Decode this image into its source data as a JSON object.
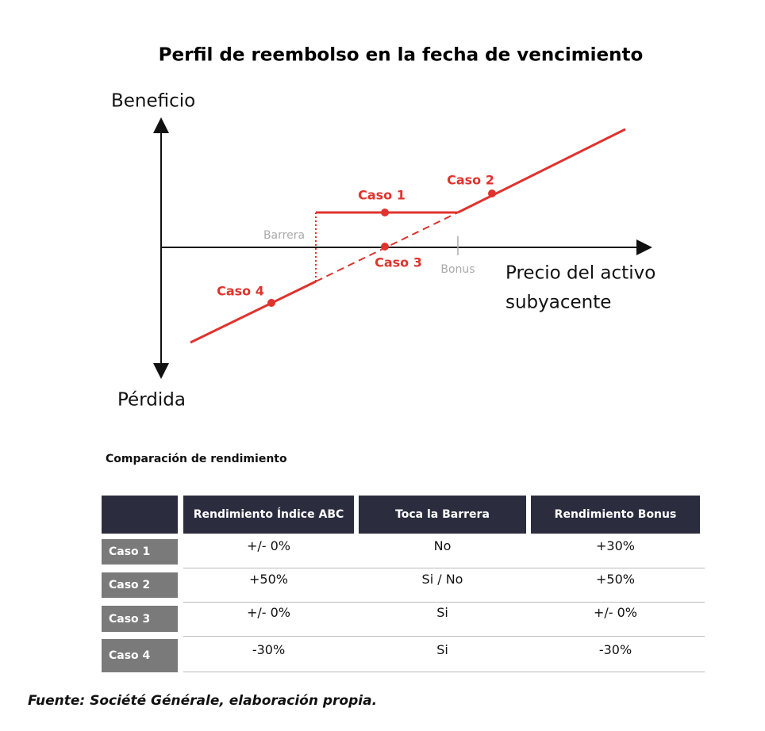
{
  "diagram": {
    "title": "Perfil de reembolso en la fecha de vencimiento",
    "y_axis_top": "Beneficio",
    "y_axis_bottom": "Pérdida",
    "x_axis_label": [
      "Precio del activo",
      "subyacente"
    ],
    "barrier_label": "Barrera",
    "bonus_label": "Bonus",
    "cases": [
      "Caso 1",
      "Caso 2",
      "Caso 3",
      "Caso 4"
    ]
  },
  "table": {
    "title": "Comparación de rendimiento",
    "header": [
      "Rendimiento Índice ABC",
      "Toca la Barrera",
      "Rendimiento Bonus"
    ],
    "rows": [
      [
        "Caso 1",
        "+/- 0%",
        "No",
        "+30%"
      ],
      [
        "Caso 2",
        "+50%",
        "Si / No",
        "+50%"
      ],
      [
        "Caso 3",
        "+/- 0%",
        "Si",
        "+/- 0%"
      ],
      [
        "Caso 4",
        "-30%",
        "Si",
        "-30%"
      ]
    ]
  },
  "footer": "Fuente: Société Générale, elaboración propia."
}
